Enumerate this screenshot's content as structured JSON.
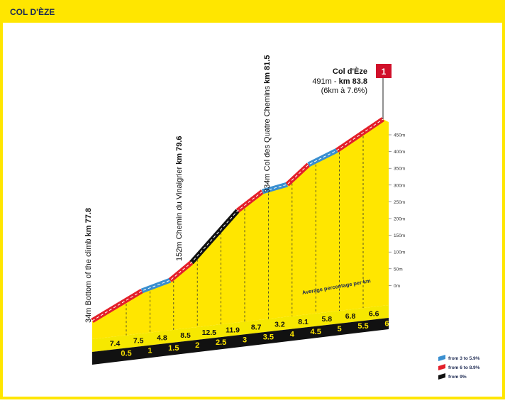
{
  "header": {
    "title": "COL D'ÈZE"
  },
  "landmarks": [
    {
      "altitude": "34m",
      "name": "Bottom of the climb",
      "km": "km 77.8"
    },
    {
      "altitude": "152m",
      "name": "Chemin du Vinaigrier",
      "km": "km 79.6"
    },
    {
      "altitude": "334m",
      "name": "Col des Quatre Chemins",
      "km": "km 81.5"
    }
  ],
  "summit": {
    "name": "Col d'Èze",
    "altitude": "491m -",
    "km": "km 83.8",
    "gradient": "(6km à 7.6%)",
    "category": "1"
  },
  "altitude_scale": [
    "450m",
    "400m",
    "350m",
    "300m",
    "250m",
    "200m",
    "150m",
    "100m",
    "50m",
    "0m"
  ],
  "average_label": "Average percentage per km",
  "percentages": [
    "7.4",
    "7.5",
    "4.8",
    "8.5",
    "12.5",
    "11.9",
    "8.7",
    "3.2",
    "8.1",
    "5.8",
    "6.8",
    "6.6"
  ],
  "km_markers": [
    "0.5",
    "1",
    "1.5",
    "2",
    "2.5",
    "3",
    "3.5",
    "4",
    "4.5",
    "5",
    "5.5",
    "6"
  ],
  "legend": [
    "from 3 to 5.9%",
    "from 6 to 8.9%",
    "from 9%"
  ]
}
